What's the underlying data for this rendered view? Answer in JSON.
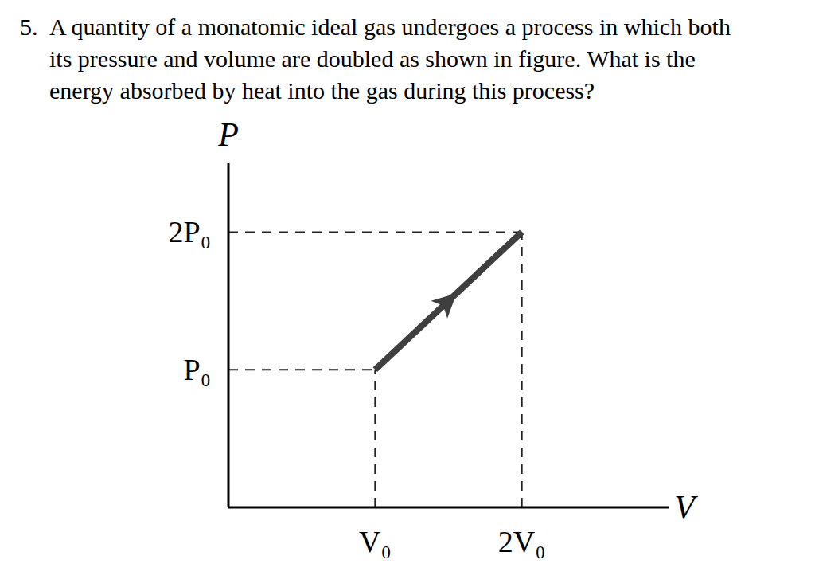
{
  "question": {
    "number": "5.",
    "lines": [
      "A quantity of a monatomic ideal gas undergoes a process in which both",
      "its pressure and volume are doubled as shown in figure. What is the",
      "energy absorbed by heat into the gas during this process?"
    ]
  },
  "chart_data": {
    "type": "line",
    "x_label": "V",
    "y_label": "P",
    "x": [
      1,
      2
    ],
    "values": [
      1,
      2
    ],
    "color": "#3f3f3f",
    "xlim": [
      0,
      3
    ],
    "ylim": [
      0,
      2.5
    ],
    "xticks": [
      {
        "value": 1,
        "label": "V₀"
      },
      {
        "value": 2,
        "label": "2V₀"
      }
    ],
    "yticks": [
      {
        "value": 1,
        "label": "P₀"
      },
      {
        "value": 2,
        "label": "2P₀"
      }
    ],
    "grid": false
  }
}
